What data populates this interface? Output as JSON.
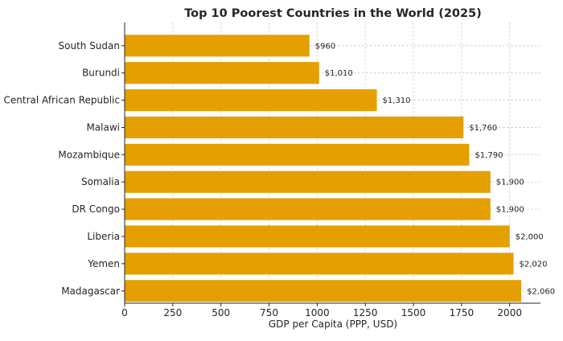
{
  "chart_data": {
    "type": "bar",
    "orientation": "horizontal",
    "title": "Top 10 Poorest Countries in the World (2025)",
    "xlabel": "GDP per Capita (PPP, USD)",
    "ylabel": "",
    "categories": [
      "South Sudan",
      "Burundi",
      "Central African Republic",
      "Malawi",
      "Mozambique",
      "Somalia",
      "DR Congo",
      "Liberia",
      "Yemen",
      "Madagascar"
    ],
    "values": [
      960,
      1010,
      1310,
      1760,
      1790,
      1900,
      1900,
      2000,
      2020,
      2060
    ],
    "value_labels": [
      "$960",
      "$1,010",
      "$1,310",
      "$1,760",
      "$1,790",
      "$1,900",
      "$1,900",
      "$2,000",
      "$2,020",
      "$2,060"
    ],
    "xlim": [
      0,
      2160
    ],
    "xticks": [
      0,
      250,
      500,
      750,
      1000,
      1250,
      1500,
      1750,
      2000
    ],
    "xtick_labels": [
      "0",
      "250",
      "500",
      "750",
      "1000",
      "1250",
      "1500",
      "1750",
      "2000"
    ],
    "grid": true,
    "bar_color": "#E59F00"
  }
}
